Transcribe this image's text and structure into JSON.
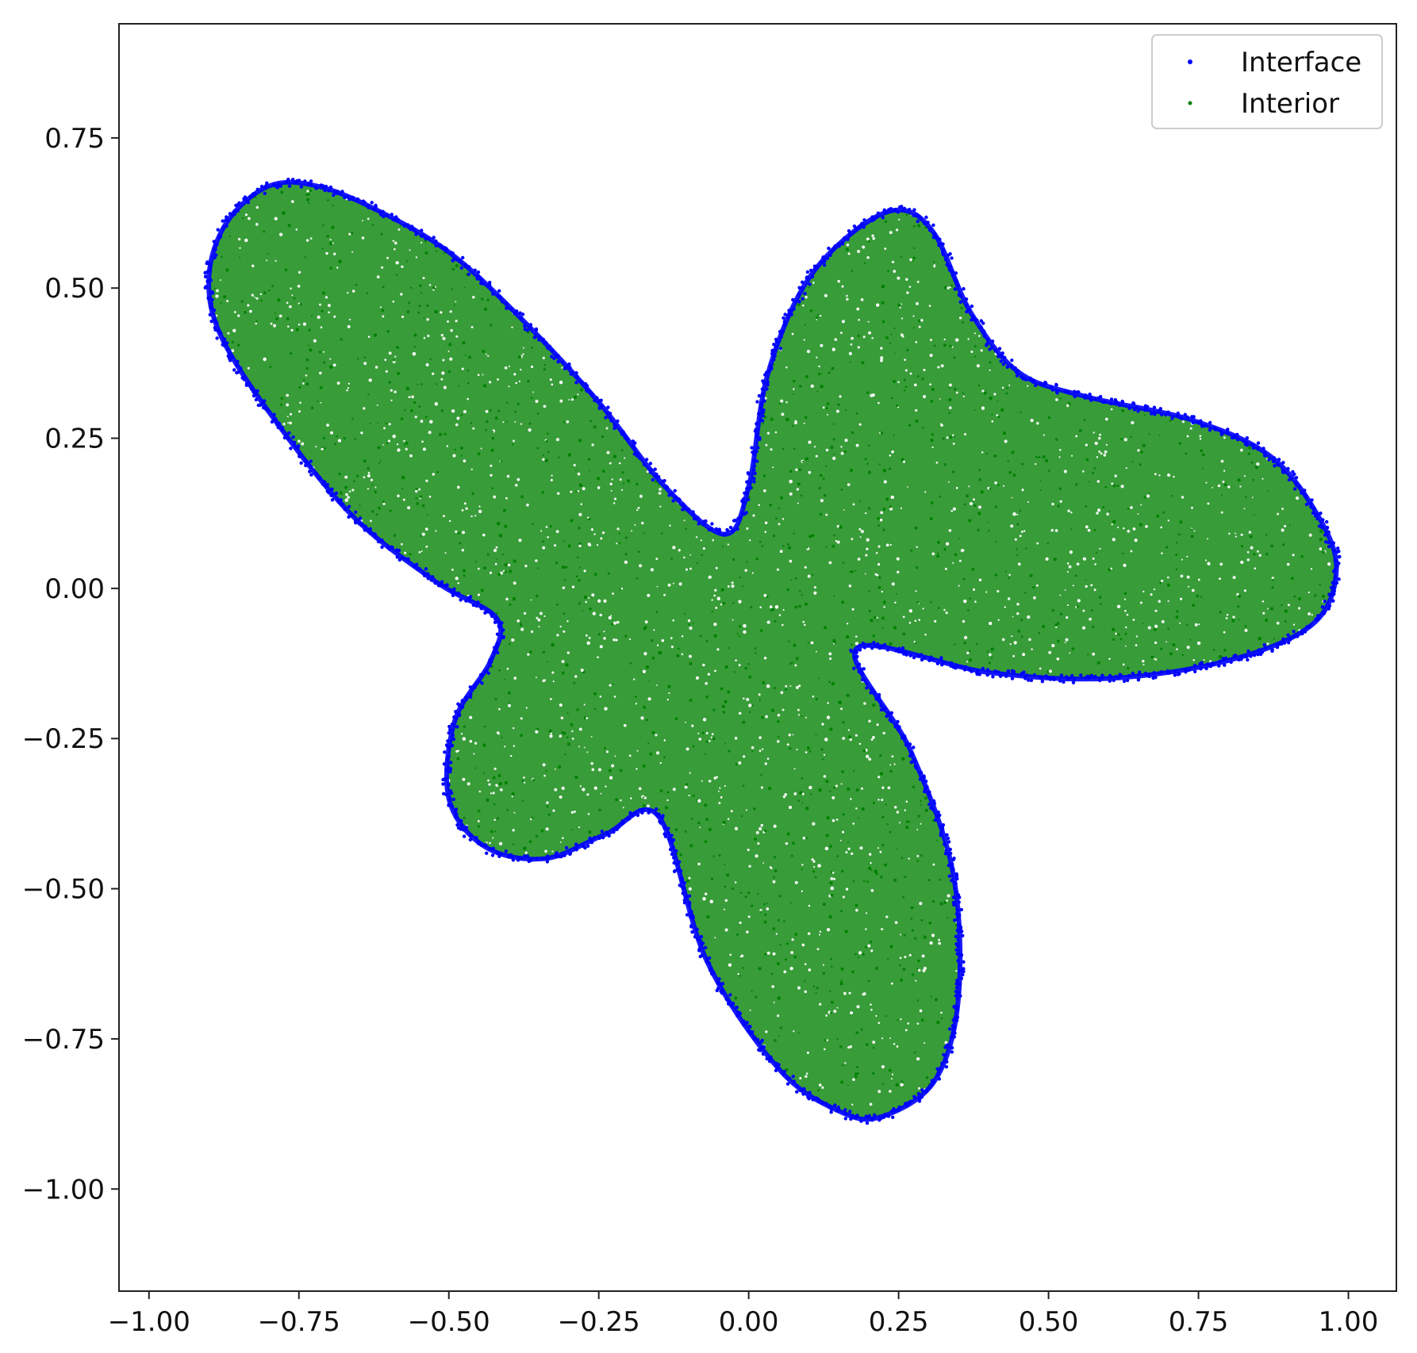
{
  "chart_data": {
    "type": "scatter",
    "title": "",
    "xlabel": "",
    "ylabel": "",
    "xlim": [
      -1.05,
      1.08
    ],
    "ylim": [
      -1.17,
      0.94
    ],
    "xticks": [
      -1.0,
      -0.75,
      -0.5,
      -0.25,
      0.0,
      0.25,
      0.5,
      0.75,
      1.0
    ],
    "xtick_labels": [
      "−1.00",
      "−0.75",
      "−0.50",
      "−0.25",
      "0.00",
      "0.25",
      "0.50",
      "0.75",
      "1.00"
    ],
    "yticks": [
      0.75,
      0.5,
      0.25,
      0.0,
      -0.25,
      -0.5,
      -0.75,
      -1.0
    ],
    "ytick_labels": [
      "0.75",
      "0.50",
      "0.25",
      "0.00",
      "−0.25",
      "−0.50",
      "−0.75",
      "−1.00"
    ],
    "grid": false,
    "legend_position": "top-right",
    "shape_outline": [
      [
        -0.9,
        0.52
      ],
      [
        -0.87,
        0.61
      ],
      [
        -0.8,
        0.67
      ],
      [
        -0.72,
        0.67
      ],
      [
        -0.62,
        0.63
      ],
      [
        -0.5,
        0.56
      ],
      [
        -0.38,
        0.45
      ],
      [
        -0.25,
        0.31
      ],
      [
        -0.14,
        0.17
      ],
      [
        -0.04,
        0.09
      ],
      [
        0.0,
        0.17
      ],
      [
        0.03,
        0.35
      ],
      [
        0.09,
        0.5
      ],
      [
        0.17,
        0.59
      ],
      [
        0.25,
        0.63
      ],
      [
        0.31,
        0.59
      ],
      [
        0.37,
        0.46
      ],
      [
        0.45,
        0.36
      ],
      [
        0.56,
        0.32
      ],
      [
        0.74,
        0.28
      ],
      [
        0.87,
        0.22
      ],
      [
        0.95,
        0.12
      ],
      [
        0.98,
        0.03
      ],
      [
        0.94,
        -0.06
      ],
      [
        0.8,
        -0.12
      ],
      [
        0.6,
        -0.15
      ],
      [
        0.4,
        -0.14
      ],
      [
        0.18,
        -0.1
      ],
      [
        0.27,
        -0.27
      ],
      [
        0.34,
        -0.47
      ],
      [
        0.35,
        -0.68
      ],
      [
        0.31,
        -0.82
      ],
      [
        0.22,
        -0.88
      ],
      [
        0.15,
        -0.87
      ],
      [
        0.05,
        -0.8
      ],
      [
        -0.07,
        -0.62
      ],
      [
        -0.15,
        -0.38
      ],
      [
        -0.24,
        -0.41
      ],
      [
        -0.34,
        -0.45
      ],
      [
        -0.44,
        -0.43
      ],
      [
        -0.5,
        -0.35
      ],
      [
        -0.49,
        -0.22
      ],
      [
        -0.43,
        -0.12
      ],
      [
        -0.42,
        -0.05
      ],
      [
        -0.52,
        0.01
      ],
      [
        -0.66,
        0.12
      ],
      [
        -0.79,
        0.28
      ],
      [
        -0.88,
        0.42
      ]
    ],
    "series": [
      {
        "name": "Interface",
        "color": "#0000ff",
        "marker": "point",
        "role": "boundary points along the shape outline"
      },
      {
        "name": "Interior",
        "color": "#008000",
        "marker": "point",
        "role": "points filling the shape interior"
      }
    ]
  },
  "legend": {
    "items": [
      {
        "label": "Interface",
        "color": "#0000ff"
      },
      {
        "label": "Interior",
        "color": "#008000"
      }
    ]
  }
}
